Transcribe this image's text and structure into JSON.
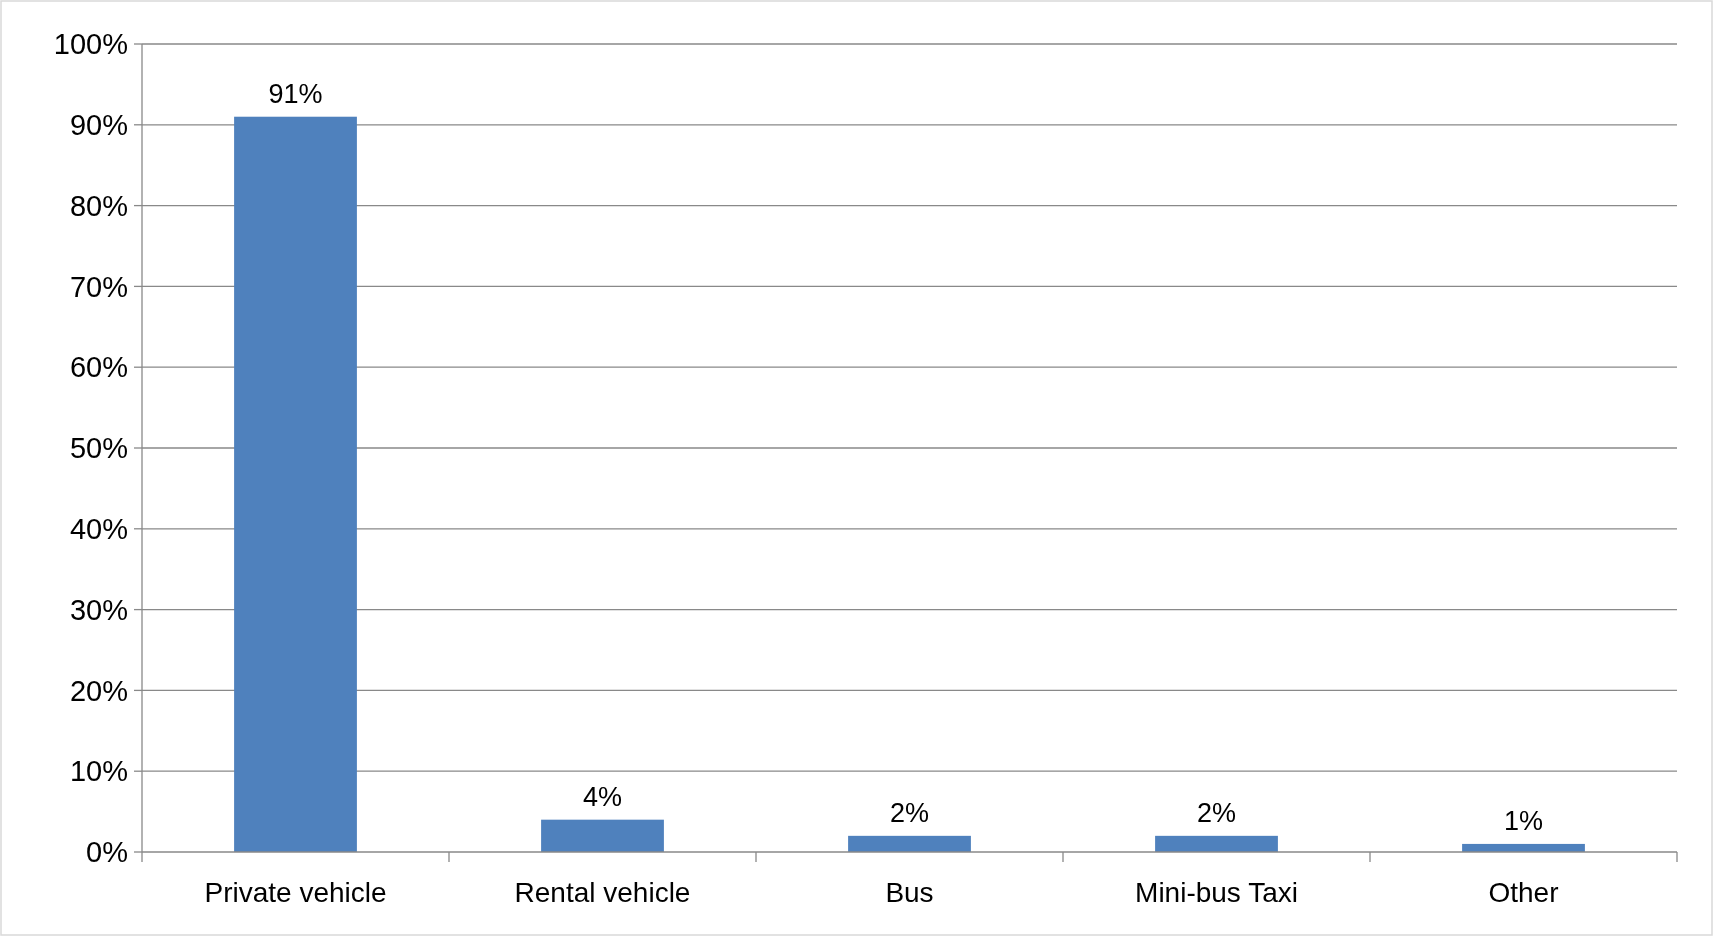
{
  "chart_data": {
    "type": "bar",
    "categories": [
      "Private vehicle",
      "Rental vehicle",
      "Bus",
      "Mini-bus Taxi",
      "Other"
    ],
    "values": [
      91,
      4,
      2,
      2,
      1
    ],
    "value_labels": [
      "91%",
      "4%",
      "2%",
      "2%",
      "1%"
    ],
    "color": "#4f81bd",
    "ylim": [
      0,
      100
    ],
    "yticks": [
      {
        "value": 0,
        "label": "0%"
      },
      {
        "value": 10,
        "label": "10%"
      },
      {
        "value": 20,
        "label": "20%"
      },
      {
        "value": 30,
        "label": "30%"
      },
      {
        "value": 40,
        "label": "40%"
      },
      {
        "value": 50,
        "label": "50%"
      },
      {
        "value": 60,
        "label": "60%"
      },
      {
        "value": 70,
        "label": "70%"
      },
      {
        "value": 80,
        "label": "80%"
      },
      {
        "value": 90,
        "label": "90%"
      },
      {
        "value": 100,
        "label": "100%"
      }
    ],
    "grid": "y"
  }
}
